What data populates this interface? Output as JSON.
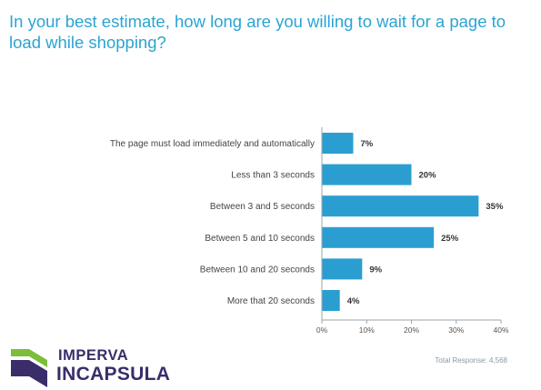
{
  "title": "In your best estimate, how long are you willing to wait for a page to load while shopping?",
  "footnote": "Total Response: 4,568",
  "logo": {
    "line1": "IMPERVA",
    "line2": "INCAPSULA",
    "mark_icon": "imperva-chevron-logo-icon"
  },
  "colors": {
    "bar": "#2b9ed1",
    "title": "#2aa4d3",
    "axis": "#9aa5ad",
    "logo": "#3a2d6a",
    "logo_accent": "#7dbd3a"
  },
  "chart_data": {
    "type": "bar",
    "orientation": "horizontal",
    "categories": [
      "The page must load immediately and automatically",
      "Less than 3 seconds",
      "Between 3 and 5 seconds",
      "Between 5 and 10 seconds",
      "Between 10 and 20 seconds",
      "More that 20 seconds"
    ],
    "values": [
      7,
      20,
      35,
      25,
      9,
      4
    ],
    "value_labels": [
      "7%",
      "20%",
      "35%",
      "25%",
      "9%",
      "4%"
    ],
    "xlim": [
      0,
      40
    ],
    "xticks": [
      0,
      10,
      20,
      30,
      40
    ],
    "xtick_labels": [
      "0%",
      "10%",
      "20%",
      "30%",
      "40%"
    ],
    "grid": false
  }
}
